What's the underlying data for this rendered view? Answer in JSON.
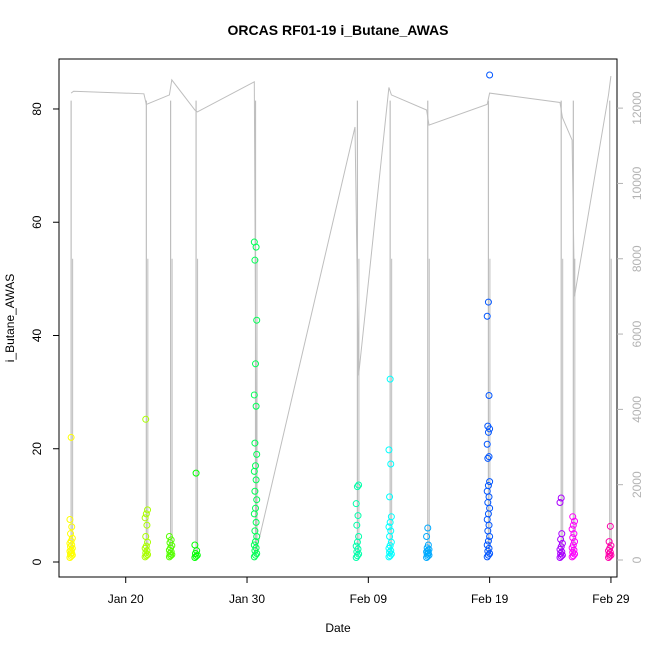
{
  "chart_data": {
    "type": "scatter",
    "title": "ORCAS RF01-19 i_Butane_AWAS",
    "xlabel": "Date",
    "ylabel": "i_Butane_AWAS",
    "x_ticks": [
      "Jan 20",
      "Jan 30",
      "Feb 09",
      "Feb 19",
      "Feb 29"
    ],
    "y_ticks": [
      0,
      20,
      40,
      60,
      80
    ],
    "y2_ticks": [
      0,
      2000,
      4000,
      6000,
      8000,
      10000,
      12000
    ],
    "y_range": [
      0,
      86
    ],
    "y2_range": [
      0,
      12800
    ],
    "x_range_days_from_jan1": [
      14.5,
      60.5
    ],
    "flights": [
      {
        "date_day": 15.5,
        "color": "#FFFF00",
        "values": [
          0.8,
          1.0,
          1.2,
          1.4,
          1.6,
          1.9,
          2.1,
          2.4,
          2.7,
          3.0,
          3.3,
          3.7,
          4.2,
          5.0,
          6.2,
          7.5,
          22.0
        ]
      },
      {
        "date_day": 21.7,
        "color": "#AAFF00",
        "values": [
          0.9,
          1.1,
          1.3,
          1.6,
          2.0,
          2.4,
          2.8,
          3.5,
          4.5,
          6.5,
          7.8,
          8.5,
          9.2,
          25.2
        ]
      },
      {
        "date_day": 23.7,
        "color": "#55FF00",
        "values": [
          0.9,
          1.1,
          1.3,
          1.5,
          1.8,
          2.1,
          2.5,
          2.9,
          3.4,
          3.9,
          4.5
        ]
      },
      {
        "date_day": 25.8,
        "color": "#00FF00",
        "values": [
          0.8,
          1.0,
          1.2,
          1.5,
          2.0,
          3.0,
          15.7
        ]
      },
      {
        "date_day": 30.7,
        "color": "#00FF55",
        "values": [
          0.9,
          1.2,
          1.5,
          2.0,
          2.5,
          3.0,
          3.6,
          4.5,
          5.5,
          7.0,
          8.5,
          9.5,
          11.0,
          12.5,
          14.5,
          16.0,
          17.0,
          19.0,
          21.0,
          27.5,
          29.5,
          35.0,
          42.7,
          53.3,
          55.6,
          56.5
        ]
      },
      {
        "date_day": 39.1,
        "color": "#00FFAA",
        "values": [
          0.8,
          1.1,
          1.4,
          1.8,
          2.3,
          2.8,
          3.5,
          4.5,
          6.5,
          8.2,
          10.3,
          13.3,
          13.6
        ]
      },
      {
        "date_day": 41.8,
        "color": "#00FFFF",
        "values": [
          0.9,
          1.1,
          1.4,
          1.7,
          2.0,
          2.4,
          2.9,
          3.5,
          4.5,
          5.5,
          6.2,
          7.0,
          8.0,
          11.5,
          17.3,
          19.8,
          32.3
        ]
      },
      {
        "date_day": 44.9,
        "color": "#00AAFF",
        "values": [
          0.8,
          1.0,
          1.2,
          1.4,
          1.6,
          1.8,
          2.0,
          2.2,
          2.5,
          3.0,
          4.5,
          6.0
        ]
      },
      {
        "date_day": 49.9,
        "color": "#0055FF",
        "values": [
          0.9,
          1.2,
          1.5,
          1.9,
          2.4,
          3.0,
          3.7,
          4.5,
          5.5,
          6.5,
          7.5,
          8.5,
          9.5,
          10.5,
          11.5,
          12.5,
          13.5,
          14.2,
          18.3,
          18.6,
          20.8,
          22.9,
          23.5,
          24.0,
          29.4,
          43.4,
          45.9,
          86.0
        ]
      },
      {
        "date_day": 55.9,
        "color": "#AA00FF",
        "values": [
          0.8,
          1.0,
          1.2,
          1.5,
          1.8,
          2.2,
          2.7,
          3.3,
          4.0,
          5.0,
          10.5,
          11.3
        ]
      },
      {
        "date_day": 56.9,
        "color": "#FF00FF",
        "values": [
          0.9,
          1.1,
          1.4,
          1.7,
          2.1,
          2.5,
          3.0,
          3.6,
          4.3,
          5.0,
          5.8,
          6.5,
          7.2,
          8.0
        ]
      },
      {
        "date_day": 59.9,
        "color": "#FF00AA",
        "values": [
          0.8,
          1.0,
          1.2,
          1.4,
          1.7,
          2.0,
          2.4,
          2.9,
          3.6,
          6.3
        ]
      }
    ],
    "altitude_series": {
      "color": "#bebebe",
      "points": [
        [
          15.5,
          12400
        ],
        [
          15.7,
          12450
        ],
        [
          21.5,
          12380
        ],
        [
          21.7,
          12100
        ],
        [
          23.6,
          12350
        ],
        [
          23.8,
          12750
        ],
        [
          25.7,
          11950
        ],
        [
          25.9,
          11900
        ],
        [
          30.6,
          12700
        ],
        [
          30.8,
          280
        ],
        [
          38.9,
          11500
        ],
        [
          39.2,
          4900
        ],
        [
          41.7,
          12550
        ],
        [
          41.9,
          12350
        ],
        [
          44.8,
          11950
        ],
        [
          45.0,
          11550
        ],
        [
          49.8,
          12100
        ],
        [
          50.0,
          12400
        ],
        [
          55.8,
          12150
        ],
        [
          56.0,
          11750
        ],
        [
          56.8,
          11150
        ],
        [
          57.0,
          7000
        ],
        [
          59.8,
          12350
        ],
        [
          60.0,
          12850
        ]
      ]
    }
  }
}
